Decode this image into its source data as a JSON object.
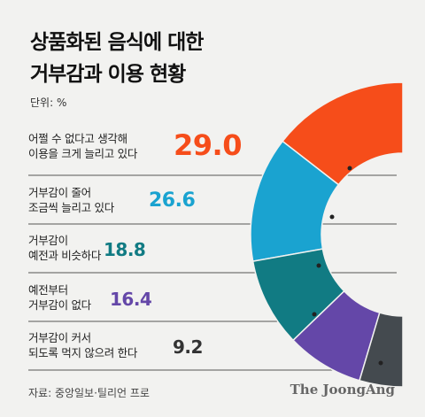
{
  "chart_data": {
    "type": "pie",
    "title": "상품화된 음식에 대한\n거부감과 이용 현황",
    "unit_label": "단위: %",
    "categories": [
      "어쩔 수 없다고 생각해\n이용을 크게 늘리고 있다",
      "거부감이 줄어\n조금씩 늘리고 있다",
      "거부감이\n예전과 비슷하다",
      "예전부터\n거부감이 없다",
      "거부감이 커서\n되도록 먹지 않으려 한다"
    ],
    "values": [
      29.0,
      26.6,
      18.8,
      16.4,
      9.2
    ],
    "value_labels": [
      "29.0",
      "26.6",
      "18.8",
      "16.4",
      "9.2"
    ],
    "colors": [
      "#f64d1a",
      "#1aa3d0",
      "#117b83",
      "#6447a8",
      "#444a4f"
    ],
    "value_colors": [
      "#f64d1a",
      "#1aa3d0",
      "#117b83",
      "#6447a8",
      "#333333"
    ],
    "source": "자료: 중앙일보·틸리언 프로",
    "brand": "The JoongAng"
  }
}
